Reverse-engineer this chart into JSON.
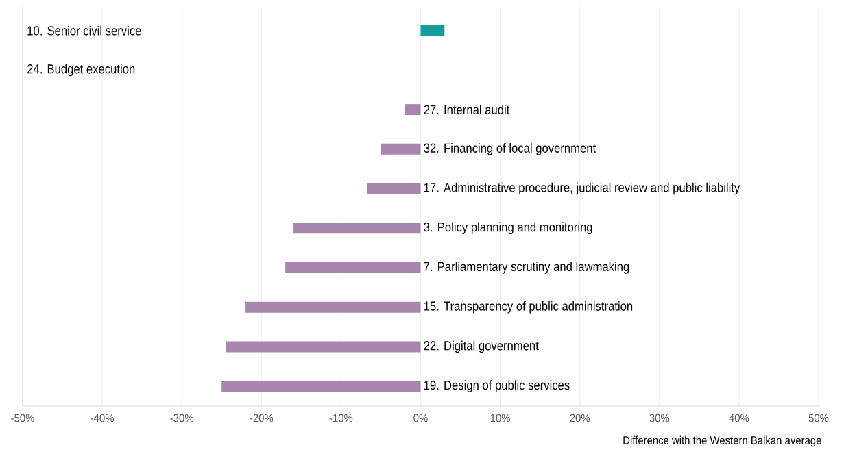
{
  "chart_data": {
    "type": "bar",
    "orientation": "horizontal",
    "xlabel": "Difference with the Western Balkan average",
    "categories": [
      "10. Senior civil service",
      "24. Budget execution",
      "27. Internal audit",
      "32. Financing of local government",
      "17. Administrative procedure, judicial review and public liability",
      "3. Policy planning and monitoring",
      "7. Parliamentary scrutiny and lawmaking",
      "15. Transparency of public administration",
      "22. Digital government",
      "19. Design of public services"
    ],
    "values": [
      3,
      0,
      -2,
      -5,
      -6.7,
      -16,
      -17,
      -22,
      -24.5,
      -25
    ],
    "colors": [
      "#159c9c",
      "#159c9c",
      "#a886ad",
      "#a886ad",
      "#a886ad",
      "#a886ad",
      "#a886ad",
      "#a886ad",
      "#a886ad",
      "#a886ad"
    ],
    "xlim": [
      -50,
      50
    ],
    "xticks": [
      {
        "value": -50,
        "label": "-50%"
      },
      {
        "value": -40,
        "label": "-40%"
      },
      {
        "value": -30,
        "label": "-30%"
      },
      {
        "value": -20,
        "label": "-20%"
      },
      {
        "value": -10,
        "label": "-10%"
      },
      {
        "value": 0,
        "label": "0%"
      },
      {
        "value": 10,
        "label": "10%"
      },
      {
        "value": 20,
        "label": "20%"
      },
      {
        "value": 30,
        "label": "30%"
      },
      {
        "value": 40,
        "label": "40%"
      },
      {
        "value": 50,
        "label": "50%"
      }
    ],
    "grid": "x",
    "tick_labels": "x"
  }
}
